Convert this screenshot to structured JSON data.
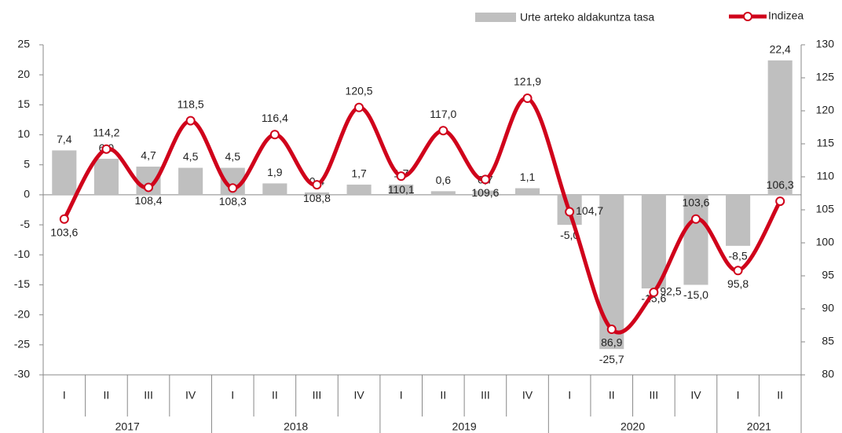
{
  "chart_data": {
    "type": "bar-line",
    "categories": [
      "I",
      "II",
      "III",
      "IV",
      "I",
      "II",
      "III",
      "IV",
      "I",
      "II",
      "III",
      "IV",
      "I",
      "II",
      "III",
      "IV",
      "I",
      "II"
    ],
    "groups": [
      {
        "label": "2017",
        "count": 4
      },
      {
        "label": "2018",
        "count": 4
      },
      {
        "label": "2019",
        "count": 4
      },
      {
        "label": "2020",
        "count": 4
      },
      {
        "label": "2021",
        "count": 2
      }
    ],
    "series": [
      {
        "name": "Urte arteko aldakuntza tasa",
        "type": "bar",
        "axis": "y",
        "color": "#bfbfbf",
        "values": [
          7.4,
          6.0,
          4.7,
          4.5,
          4.5,
          1.9,
          0.4,
          1.7,
          1.7,
          0.6,
          0.7,
          1.1,
          -5.0,
          -25.7,
          -15.6,
          -15.0,
          -8.5,
          22.4
        ],
        "value_labels": [
          "7,4",
          "6,0",
          "4,7",
          "4,5",
          "4,5",
          "1,9",
          "0,4",
          "1,7",
          "1,7",
          "0,6",
          "0,7",
          "1,1",
          "-5,0",
          "-25,7",
          "-15,6",
          "-15,0",
          "-8,5",
          "22,4"
        ]
      },
      {
        "name": "Indizea",
        "type": "line",
        "axis": "y2",
        "color": "#d0021b",
        "values": [
          103.6,
          114.2,
          108.4,
          118.5,
          108.3,
          116.4,
          108.8,
          120.5,
          110.1,
          117.0,
          109.6,
          121.9,
          104.7,
          86.9,
          92.5,
          103.6,
          95.8,
          106.3
        ],
        "value_labels": [
          "103,6",
          "114,2",
          "108,4",
          "118,5",
          "108,3",
          "116,4",
          "108,8",
          "120,5",
          "110,1",
          "117,0",
          "109,6",
          "121,9",
          "104,7",
          "86,9",
          "92,5",
          "103,6",
          "95,8",
          "106,3"
        ]
      }
    ],
    "ylim": [
      -30,
      25
    ],
    "yticks": [
      -30,
      -25,
      -20,
      -15,
      -10,
      -5,
      0,
      5,
      10,
      15,
      20,
      25
    ],
    "y2lim": [
      80,
      130
    ],
    "y2ticks": [
      80,
      85,
      90,
      95,
      100,
      105,
      110,
      115,
      120,
      125,
      130
    ]
  }
}
